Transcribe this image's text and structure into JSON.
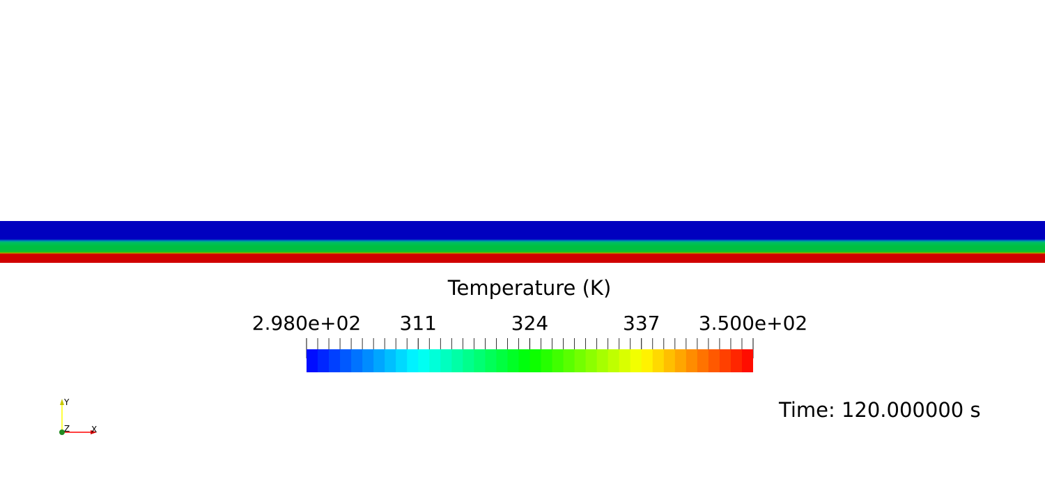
{
  "scalar_bar": {
    "title": "Temperature (K)",
    "range": [
      298.0,
      350.0
    ],
    "labels": [
      "2.980e+02",
      "311",
      "324",
      "337",
      "3.500e+02"
    ],
    "label_values": [
      298.0,
      311.0,
      324.0,
      337.0,
      350.0
    ],
    "num_colors": 40,
    "colormap": [
      "#0000ff",
      "#00ffff",
      "#00ff00",
      "#ffff00",
      "#ff0000"
    ]
  },
  "time_label": "Time: 120.000000 s",
  "axes": {
    "x": "X",
    "y": "Y",
    "z": "Z"
  },
  "colors": {
    "x_axis": "#ff0000",
    "y_axis": "#ffff00",
    "z_axis": "#228b22"
  }
}
